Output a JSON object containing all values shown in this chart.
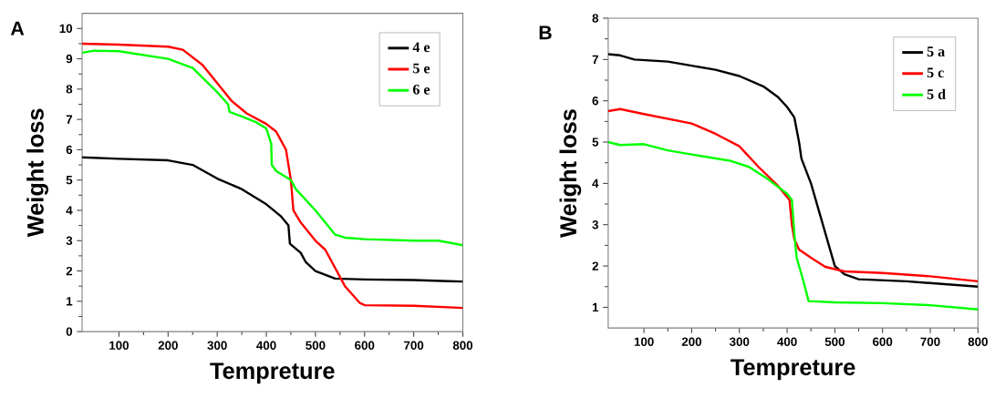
{
  "chart_data": [
    {
      "type": "line",
      "title": "A",
      "xlabel": "Tempreture",
      "ylabel": "Weight loss",
      "xlim": [
        25,
        800
      ],
      "ylim": [
        0,
        10.5
      ],
      "xticks": [
        100,
        200,
        300,
        400,
        500,
        600,
        700,
        800
      ],
      "yticks": [
        0,
        1,
        2,
        3,
        4,
        5,
        6,
        7,
        8,
        9,
        10
      ],
      "legend": "top right",
      "series": [
        {
          "name": "4 e",
          "color": "#000000",
          "x": [
            25,
            100,
            200,
            250,
            300,
            350,
            400,
            430,
            445,
            448,
            470,
            480,
            500,
            540,
            600,
            700,
            800
          ],
          "values": [
            5.75,
            5.7,
            5.65,
            5.5,
            5.05,
            4.7,
            4.2,
            3.8,
            3.5,
            2.9,
            2.6,
            2.3,
            2.0,
            1.75,
            1.72,
            1.7,
            1.65
          ]
        },
        {
          "name": "5 e",
          "color": "#ff0000",
          "x": [
            25,
            100,
            200,
            230,
            270,
            300,
            330,
            360,
            400,
            420,
            440,
            450,
            455,
            470,
            500,
            520,
            560,
            590,
            600,
            700,
            800
          ],
          "values": [
            9.5,
            9.47,
            9.4,
            9.3,
            8.8,
            8.2,
            7.6,
            7.2,
            6.85,
            6.6,
            6.0,
            5.0,
            4.0,
            3.6,
            3.0,
            2.7,
            1.5,
            0.95,
            0.87,
            0.85,
            0.78
          ]
        },
        {
          "name": "6 e",
          "color": "#00ff00",
          "x": [
            25,
            50,
            100,
            200,
            250,
            300,
            322,
            325,
            350,
            380,
            400,
            410,
            411,
            420,
            450,
            460,
            480,
            500,
            520,
            540,
            560,
            600,
            700,
            750,
            800
          ],
          "values": [
            9.2,
            9.27,
            9.25,
            9.0,
            8.7,
            7.9,
            7.5,
            7.25,
            7.1,
            6.9,
            6.7,
            6.2,
            5.5,
            5.3,
            5.0,
            4.7,
            4.35,
            4.0,
            3.6,
            3.2,
            3.1,
            3.05,
            3.0,
            3.0,
            2.85
          ]
        }
      ]
    },
    {
      "type": "line",
      "title": "B",
      "xlabel": "Tempreture",
      "ylabel": "Weight loss",
      "xlim": [
        25,
        800
      ],
      "ylim": [
        0.5,
        8
      ],
      "xticks": [
        100,
        200,
        300,
        400,
        500,
        600,
        700,
        800
      ],
      "yticks": [
        1,
        2,
        3,
        4,
        5,
        6,
        7,
        8
      ],
      "legend": "top right",
      "series": [
        {
          "name": "5 a",
          "color": "#000000",
          "x": [
            25,
            50,
            80,
            150,
            200,
            250,
            300,
            350,
            380,
            400,
            415,
            425,
            430,
            450,
            480,
            500,
            520,
            550,
            650,
            800
          ],
          "values": [
            7.13,
            7.1,
            7.0,
            6.95,
            6.85,
            6.75,
            6.6,
            6.35,
            6.1,
            5.85,
            5.6,
            5.0,
            4.6,
            4.0,
            2.8,
            2.0,
            1.8,
            1.68,
            1.63,
            1.5
          ]
        },
        {
          "name": "5 c",
          "color": "#ff0000",
          "x": [
            25,
            50,
            100,
            200,
            250,
            300,
            340,
            380,
            405,
            410,
            415,
            425,
            450,
            480,
            520,
            600,
            700,
            800
          ],
          "values": [
            5.75,
            5.8,
            5.68,
            5.45,
            5.2,
            4.9,
            4.4,
            3.95,
            3.6,
            3.0,
            2.65,
            2.4,
            2.2,
            1.98,
            1.87,
            1.83,
            1.75,
            1.63
          ]
        },
        {
          "name": "5 d",
          "color": "#00ff00",
          "x": [
            25,
            50,
            100,
            150,
            200,
            280,
            320,
            360,
            400,
            410,
            415,
            420,
            435,
            445,
            500,
            600,
            700,
            800
          ],
          "values": [
            5.0,
            4.93,
            4.95,
            4.8,
            4.7,
            4.55,
            4.4,
            4.1,
            3.75,
            3.6,
            2.8,
            2.2,
            1.6,
            1.15,
            1.12,
            1.1,
            1.05,
            0.95
          ]
        }
      ]
    }
  ]
}
